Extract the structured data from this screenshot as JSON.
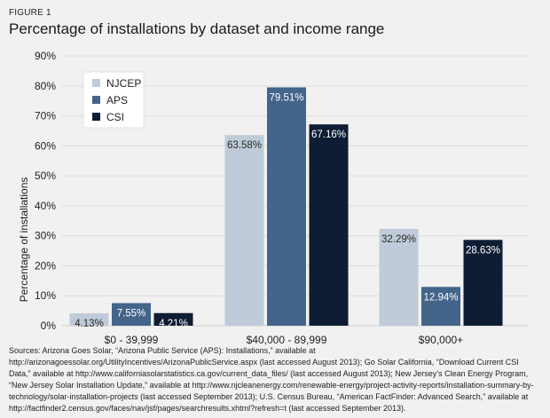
{
  "figure_label": "FIGURE 1",
  "title": "Percentage of installations by dataset and income range",
  "sources": "Sources: Arizona Goes Solar, “Arizona Public Service (APS): Installations,” available at http://arizonagoessolar.org/UtilityIncentives/ArizonaPublicService.aspx (last accessed August 2013); Go Solar California, “Download Current CSI Data,” available at http://www.californiasolarstatistics.ca.gov/current_data_files/ (last accessed August 2013); New Jersey’s Clean Energy Program, “New Jersey Solar Installation Update,” available at http://www.njcleanenergy.com/renewable-energy/project-activity-reports/installation-summary-by-technology/solar-installation-projects (last accessed September 2013); U.S. Census Bureau, “American FactFinder: Advanced Search,” available at http://factfinder2.census.gov/faces/nav/jsf/pages/searchresults.xhtml?refresh=t (last accessed September 2013).",
  "chart_data": {
    "type": "bar",
    "title": "Percentage of installations by dataset and income range",
    "xlabel": "",
    "ylabel": "Percentage of installations",
    "ylim": [
      0,
      90
    ],
    "yticks": [
      0,
      10,
      20,
      30,
      40,
      50,
      60,
      70,
      80,
      90
    ],
    "ytick_labels": [
      "0%",
      "10%",
      "20%",
      "30%",
      "40%",
      "50%",
      "60%",
      "70%",
      "80%",
      "90%"
    ],
    "grid": true,
    "legend_position": "top-left",
    "categories": [
      "$0 - 39,999",
      "$40,000 - 89,999",
      "$90,000+"
    ],
    "series": [
      {
        "name": "NJCEP",
        "color": "#bfcbd8",
        "label_color": "#2a2a2a",
        "values": [
          4.13,
          63.58,
          32.29
        ],
        "labels": [
          "4.13%",
          "63.58%",
          "32.29%"
        ]
      },
      {
        "name": "APS",
        "color": "#43658a",
        "label_color": "#ffffff",
        "values": [
          7.55,
          79.51,
          12.94
        ],
        "labels": [
          "7.55%",
          "79.51%",
          "12.94%"
        ]
      },
      {
        "name": "CSI",
        "color": "#0e1d33",
        "label_color": "#ffffff",
        "values": [
          4.21,
          67.16,
          28.63
        ],
        "labels": [
          "4.21%",
          "67.16%",
          "28.63%"
        ]
      }
    ]
  }
}
